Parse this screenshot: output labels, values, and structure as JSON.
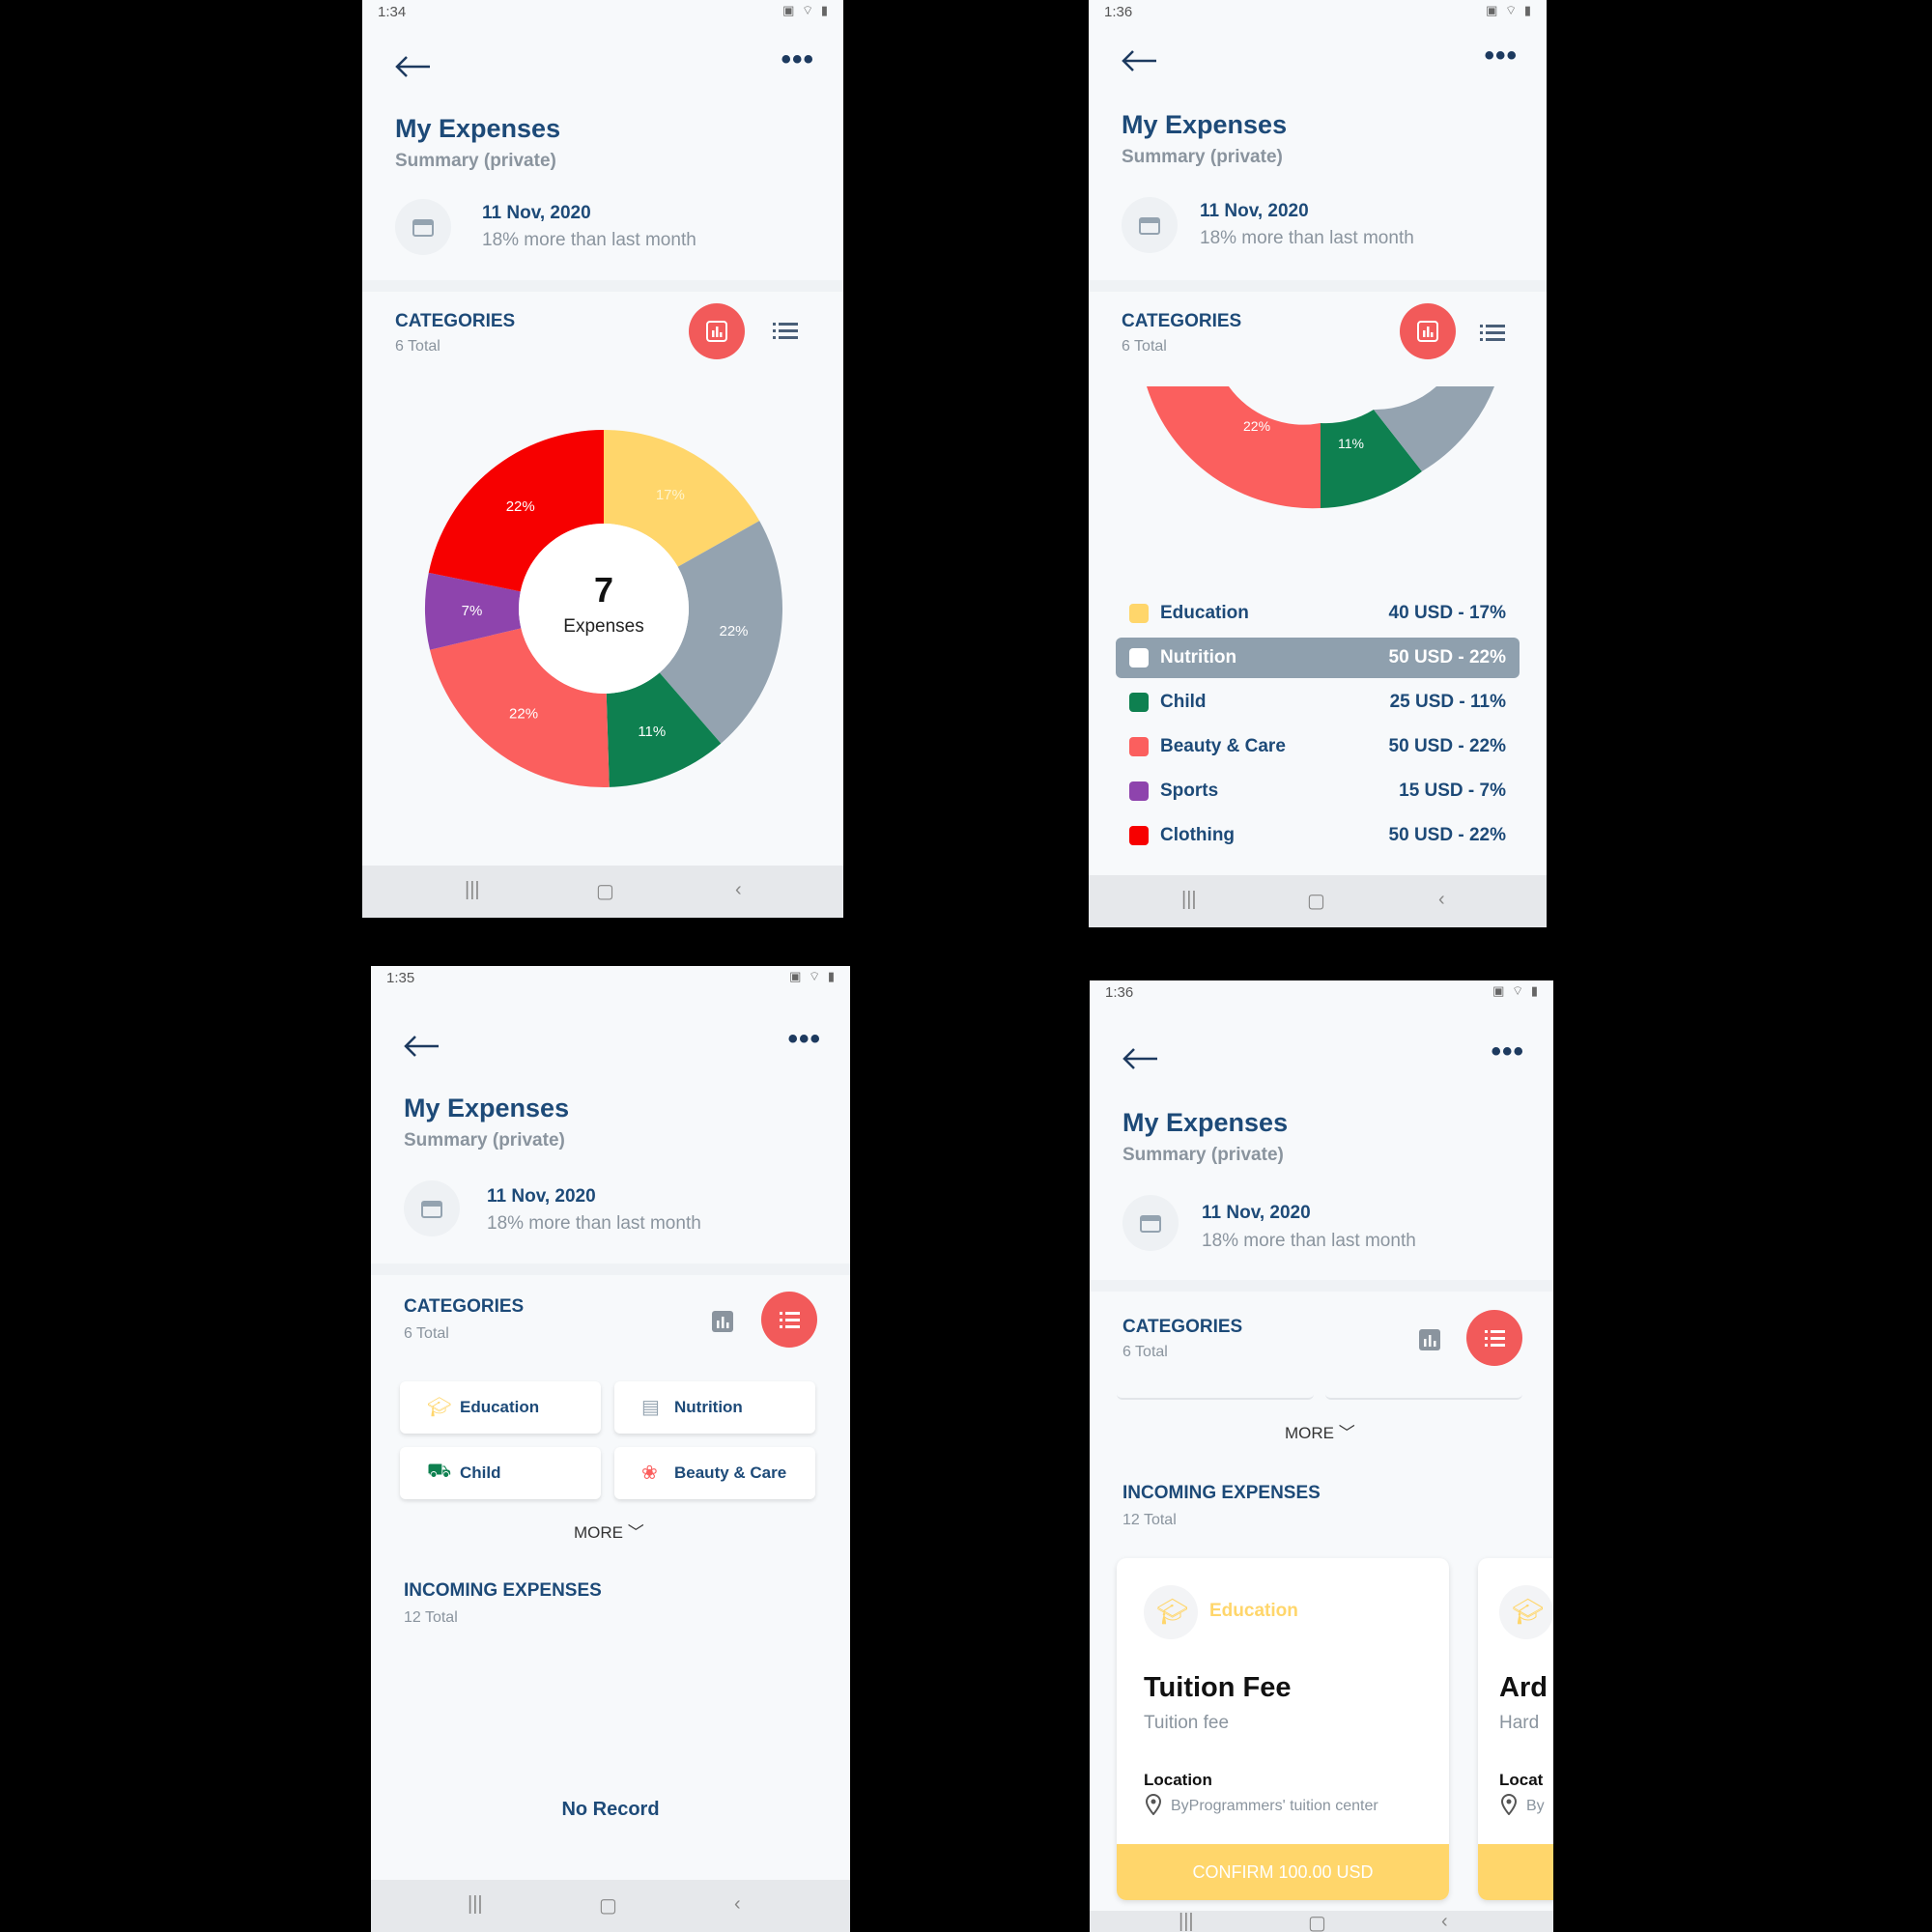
{
  "screens": [
    {
      "status_time": "1:34"
    },
    {
      "status_time": "1:36"
    },
    {
      "status_time": "1:35"
    },
    {
      "status_time": "1:36"
    }
  ],
  "status_icons": "▣ ⌔ ▮",
  "header": {
    "title": "My Expenses",
    "subtitle": "Summary (private)",
    "date": "11 Nov, 2020",
    "date_note": "18% more than last month"
  },
  "categories": {
    "title": "CATEGORIES",
    "total": "6 Total"
  },
  "chart_data": {
    "type": "pie",
    "center_count": "7",
    "center_label": "Expenses",
    "slices": [
      {
        "label": "Education",
        "percent": 17,
        "value_text": "17%",
        "color": "#ffd66b"
      },
      {
        "label": "Nutrition",
        "percent": 22,
        "value_text": "22%",
        "color": "#94a3b0"
      },
      {
        "label": "Child",
        "percent": 11,
        "value_text": "11%",
        "color": "#0e8050"
      },
      {
        "label": "Beauty & Care",
        "percent": 22,
        "value_text": "22%",
        "color": "#fb5f5e"
      },
      {
        "label": "Sports",
        "percent": 7,
        "value_text": "7%",
        "color": "#8e44ad"
      },
      {
        "label": "Clothing",
        "percent": 22,
        "value_text": "22%",
        "color": "#f70000"
      }
    ]
  },
  "legend": [
    {
      "label": "Education",
      "value": "40 USD - 17%",
      "color": "#ffd66b"
    },
    {
      "label": "Nutrition",
      "value": "50 USD - 22%",
      "color": "#ffffff",
      "selected": true
    },
    {
      "label": "Child",
      "value": "25 USD - 11%",
      "color": "#0e8050"
    },
    {
      "label": "Beauty & Care",
      "value": "50 USD - 22%",
      "color": "#fb5f5e"
    },
    {
      "label": "Sports",
      "value": "15 USD - 7%",
      "color": "#8e44ad"
    },
    {
      "label": "Clothing",
      "value": "50 USD - 22%",
      "color": "#f70000"
    }
  ],
  "chips": [
    {
      "label": "Education",
      "icon": "graduation-cap-icon",
      "color": "#ffd66b"
    },
    {
      "label": "Nutrition",
      "icon": "food-icon",
      "color": "#94a3b0"
    },
    {
      "label": "Child",
      "icon": "stroller-icon",
      "color": "#0e8050"
    },
    {
      "label": "Beauty & Care",
      "icon": "beauty-icon",
      "color": "#fb5f5e"
    }
  ],
  "more_label": "MORE",
  "incoming": {
    "title": "INCOMING EXPENSES",
    "total": "12 Total",
    "no_record": "No Record"
  },
  "expense_cards": [
    {
      "category": "Education",
      "name": "Tuition Fee",
      "description": "Tuition fee",
      "location_label": "Location",
      "address": "ByProgrammers' tuition center",
      "button": "CONFIRM 100.00 USD"
    },
    {
      "name": "Ard",
      "description": "Hard",
      "location_label": "Locat",
      "address": "By"
    }
  ],
  "colors": {
    "accent": "#f25a5a",
    "primary_text": "#1d4a78",
    "muted_text": "#8a949e"
  }
}
